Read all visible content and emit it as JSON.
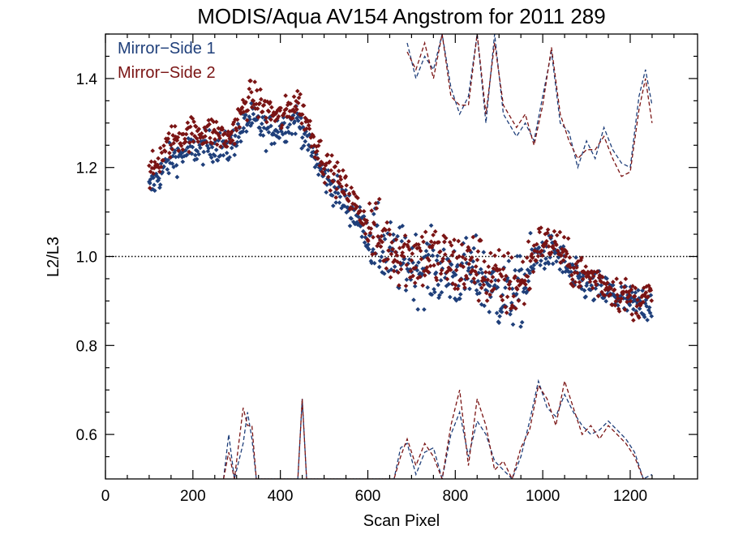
{
  "chart_data": {
    "type": "scatter",
    "title": "MODIS/Aqua AV154 Angstrom for 2011 289",
    "xlabel": "Scan Pixel",
    "ylabel": "L2/L3",
    "xlim": [
      0,
      1354
    ],
    "ylim": [
      0.5,
      1.5
    ],
    "x_ticks": [
      0,
      200,
      400,
      600,
      800,
      1000,
      1200
    ],
    "y_ticks": [
      0.6,
      0.8,
      1.0,
      1.2,
      1.4
    ],
    "x_tick_labels": [
      "0",
      "200",
      "400",
      "600",
      "800",
      "1000",
      "1200"
    ],
    "y_tick_labels": [
      "0.6",
      "0.8",
      "1.0",
      "1.2",
      "1.4"
    ],
    "reference_line": 1.0,
    "legend_position": "top-left",
    "grid": false,
    "series": [
      {
        "name": "Mirror−Side 1",
        "color": "#1f3f7a",
        "mean_profile": [
          [
            100,
            1.15
          ],
          [
            150,
            1.22
          ],
          [
            200,
            1.24
          ],
          [
            250,
            1.25
          ],
          [
            280,
            1.24
          ],
          [
            300,
            1.27
          ],
          [
            330,
            1.31
          ],
          [
            370,
            1.28
          ],
          [
            400,
            1.29
          ],
          [
            440,
            1.31
          ],
          [
            470,
            1.24
          ],
          [
            500,
            1.18
          ],
          [
            550,
            1.12
          ],
          [
            600,
            1.05
          ],
          [
            650,
            1.0
          ],
          [
            700,
            0.98
          ],
          [
            750,
            0.97
          ],
          [
            800,
            0.96
          ],
          [
            850,
            0.96
          ],
          [
            900,
            0.91
          ],
          [
            950,
            0.92
          ],
          [
            990,
            1.01
          ],
          [
            1030,
            1.01
          ],
          [
            1070,
            0.95
          ],
          [
            1120,
            0.93
          ],
          [
            1170,
            0.91
          ],
          [
            1210,
            0.89
          ],
          [
            1250,
            0.9
          ]
        ],
        "upper_dashed": [
          [
            690,
            1.48
          ],
          [
            710,
            1.4
          ],
          [
            730,
            1.45
          ],
          [
            750,
            1.42
          ],
          [
            770,
            1.5
          ],
          [
            790,
            1.38
          ],
          [
            810,
            1.32
          ],
          [
            830,
            1.36
          ],
          [
            850,
            1.5
          ],
          [
            870,
            1.3
          ],
          [
            890,
            1.5
          ],
          [
            910,
            1.32
          ],
          [
            940,
            1.27
          ],
          [
            960,
            1.3
          ],
          [
            980,
            1.26
          ],
          [
            1000,
            1.36
          ],
          [
            1020,
            1.46
          ],
          [
            1040,
            1.3
          ],
          [
            1060,
            1.28
          ],
          [
            1080,
            1.2
          ],
          [
            1100,
            1.26
          ],
          [
            1120,
            1.22
          ],
          [
            1140,
            1.29
          ],
          [
            1160,
            1.24
          ],
          [
            1180,
            1.21
          ],
          [
            1200,
            1.2
          ],
          [
            1220,
            1.36
          ],
          [
            1235,
            1.42
          ],
          [
            1250,
            1.34
          ]
        ],
        "lower_dashed": [
          [
            270,
            0.5
          ],
          [
            282,
            0.6
          ],
          [
            295,
            0.5
          ],
          [
            315,
            0.58
          ],
          [
            325,
            0.65
          ],
          [
            335,
            0.59
          ],
          [
            345,
            0.5
          ],
          [
            440,
            0.5
          ],
          [
            450,
            0.68
          ],
          [
            460,
            0.5
          ],
          [
            660,
            0.5
          ],
          [
            675,
            0.57
          ],
          [
            690,
            0.58
          ],
          [
            710,
            0.51
          ],
          [
            730,
            0.56
          ],
          [
            750,
            0.57
          ],
          [
            770,
            0.5
          ],
          [
            790,
            0.6
          ],
          [
            810,
            0.65
          ],
          [
            830,
            0.55
          ],
          [
            850,
            0.63
          ],
          [
            870,
            0.6
          ],
          [
            890,
            0.54
          ],
          [
            910,
            0.52
          ],
          [
            930,
            0.5
          ],
          [
            950,
            0.55
          ],
          [
            970,
            0.63
          ],
          [
            990,
            0.72
          ],
          [
            1010,
            0.66
          ],
          [
            1030,
            0.64
          ],
          [
            1050,
            0.69
          ],
          [
            1070,
            0.65
          ],
          [
            1090,
            0.62
          ],
          [
            1110,
            0.6
          ],
          [
            1130,
            0.61
          ],
          [
            1150,
            0.63
          ],
          [
            1170,
            0.61
          ],
          [
            1190,
            0.59
          ],
          [
            1210,
            0.56
          ],
          [
            1230,
            0.5
          ],
          [
            1250,
            0.51
          ]
        ]
      },
      {
        "name": "Mirror−Side 2",
        "color": "#7a1414",
        "mean_profile": [
          [
            100,
            1.18
          ],
          [
            150,
            1.26
          ],
          [
            200,
            1.28
          ],
          [
            250,
            1.28
          ],
          [
            280,
            1.26
          ],
          [
            300,
            1.3
          ],
          [
            330,
            1.36
          ],
          [
            370,
            1.33
          ],
          [
            400,
            1.31
          ],
          [
            440,
            1.35
          ],
          [
            470,
            1.28
          ],
          [
            500,
            1.21
          ],
          [
            550,
            1.15
          ],
          [
            600,
            1.07
          ],
          [
            650,
            1.02
          ],
          [
            700,
            1.0
          ],
          [
            750,
            1.0
          ],
          [
            800,
            0.98
          ],
          [
            850,
            0.98
          ],
          [
            900,
            0.94
          ],
          [
            950,
            0.93
          ],
          [
            990,
            1.03
          ],
          [
            1030,
            1.03
          ],
          [
            1070,
            0.97
          ],
          [
            1120,
            0.95
          ],
          [
            1170,
            0.92
          ],
          [
            1210,
            0.9
          ],
          [
            1250,
            0.91
          ]
        ],
        "upper_dashed": [
          [
            690,
            1.46
          ],
          [
            710,
            1.42
          ],
          [
            730,
            1.48
          ],
          [
            750,
            1.4
          ],
          [
            770,
            1.5
          ],
          [
            790,
            1.36
          ],
          [
            810,
            1.34
          ],
          [
            830,
            1.34
          ],
          [
            850,
            1.5
          ],
          [
            870,
            1.32
          ],
          [
            890,
            1.48
          ],
          [
            910,
            1.34
          ],
          [
            940,
            1.29
          ],
          [
            960,
            1.32
          ],
          [
            980,
            1.25
          ],
          [
            1000,
            1.34
          ],
          [
            1020,
            1.47
          ],
          [
            1040,
            1.32
          ],
          [
            1060,
            1.26
          ],
          [
            1080,
            1.22
          ],
          [
            1100,
            1.24
          ],
          [
            1120,
            1.24
          ],
          [
            1140,
            1.27
          ],
          [
            1160,
            1.22
          ],
          [
            1180,
            1.18
          ],
          [
            1200,
            1.19
          ],
          [
            1220,
            1.33
          ],
          [
            1235,
            1.4
          ],
          [
            1250,
            1.3
          ]
        ],
        "lower_dashed": [
          [
            270,
            0.5
          ],
          [
            282,
            0.56
          ],
          [
            295,
            0.5
          ],
          [
            315,
            0.66
          ],
          [
            325,
            0.62
          ],
          [
            335,
            0.62
          ],
          [
            345,
            0.5
          ],
          [
            440,
            0.5
          ],
          [
            450,
            0.68
          ],
          [
            460,
            0.5
          ],
          [
            660,
            0.5
          ],
          [
            675,
            0.55
          ],
          [
            690,
            0.59
          ],
          [
            710,
            0.53
          ],
          [
            730,
            0.58
          ],
          [
            750,
            0.55
          ],
          [
            770,
            0.5
          ],
          [
            790,
            0.62
          ],
          [
            810,
            0.7
          ],
          [
            830,
            0.53
          ],
          [
            850,
            0.68
          ],
          [
            870,
            0.62
          ],
          [
            890,
            0.52
          ],
          [
            910,
            0.54
          ],
          [
            930,
            0.5
          ],
          [
            950,
            0.57
          ],
          [
            970,
            0.61
          ],
          [
            990,
            0.71
          ],
          [
            1010,
            0.68
          ],
          [
            1030,
            0.62
          ],
          [
            1050,
            0.72
          ],
          [
            1070,
            0.66
          ],
          [
            1090,
            0.6
          ],
          [
            1110,
            0.62
          ],
          [
            1130,
            0.59
          ],
          [
            1150,
            0.62
          ],
          [
            1170,
            0.6
          ],
          [
            1190,
            0.58
          ],
          [
            1210,
            0.55
          ],
          [
            1230,
            0.5
          ],
          [
            1250,
            0.5
          ]
        ]
      }
    ]
  }
}
